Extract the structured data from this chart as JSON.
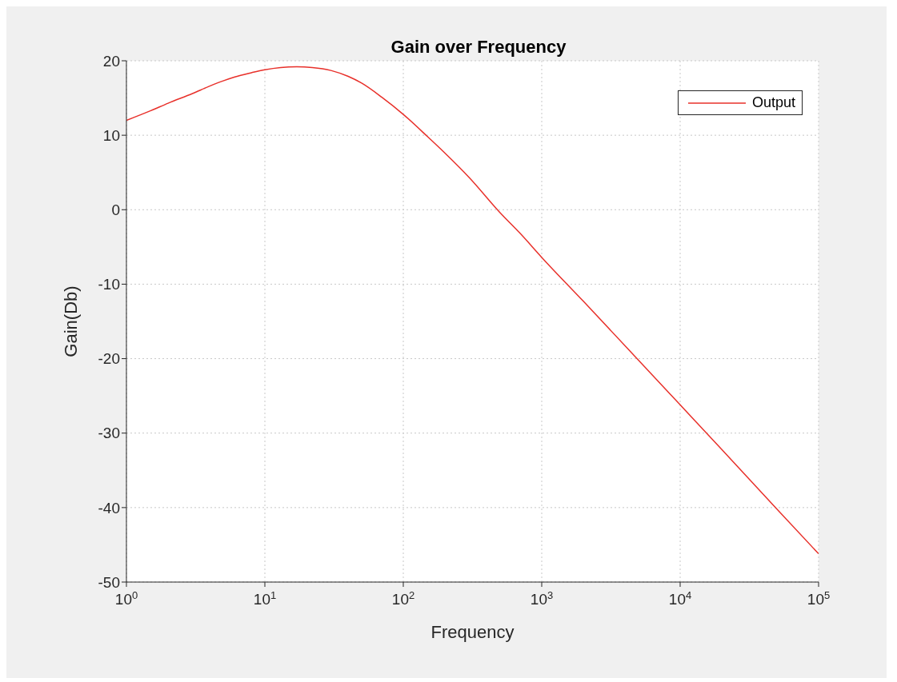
{
  "chart_data": {
    "type": "line",
    "title": "Gain over Frequency",
    "xlabel": "Frequency",
    "ylabel": "Gain(Db)",
    "x": [
      1,
      1.5,
      2,
      3,
      4,
      5,
      6,
      8,
      10,
      13,
      17,
      22,
      30,
      40,
      50,
      70,
      100,
      150,
      200,
      300,
      500,
      700,
      1000,
      2000,
      5000,
      10000,
      20000,
      50000,
      100000
    ],
    "series": [
      {
        "name": "Output",
        "color": "#e8302a",
        "values": [
          12.0,
          13.3,
          14.3,
          15.6,
          16.6,
          17.3,
          17.8,
          18.4,
          18.8,
          19.1,
          19.2,
          19.1,
          18.7,
          17.9,
          17.0,
          15.1,
          12.8,
          9.8,
          7.6,
          4.3,
          -0.4,
          -3.2,
          -6.4,
          -12.3,
          -20.2,
          -26.2,
          -32.2,
          -40.2,
          -46.2
        ]
      }
    ],
    "log": "x",
    "xlim": [
      1,
      100000
    ],
    "xticks": [
      {
        "value": 1,
        "label": "10$^{0}$"
      },
      {
        "value": 10,
        "label": "10$^{1}$"
      },
      {
        "value": 100,
        "label": "10$^{2}$"
      },
      {
        "value": 1000,
        "label": "10$^{3}$"
      },
      {
        "value": 10000,
        "label": "10$^{4}$"
      },
      {
        "value": 100000,
        "label": "10$^{5}$"
      }
    ],
    "ylim": [
      -50,
      20
    ],
    "yticks": [
      -50,
      -40,
      -30,
      -20,
      -10,
      0,
      10,
      20
    ],
    "grid": true,
    "legend": "top right",
    "marker": "none",
    "line_style": "solid"
  }
}
